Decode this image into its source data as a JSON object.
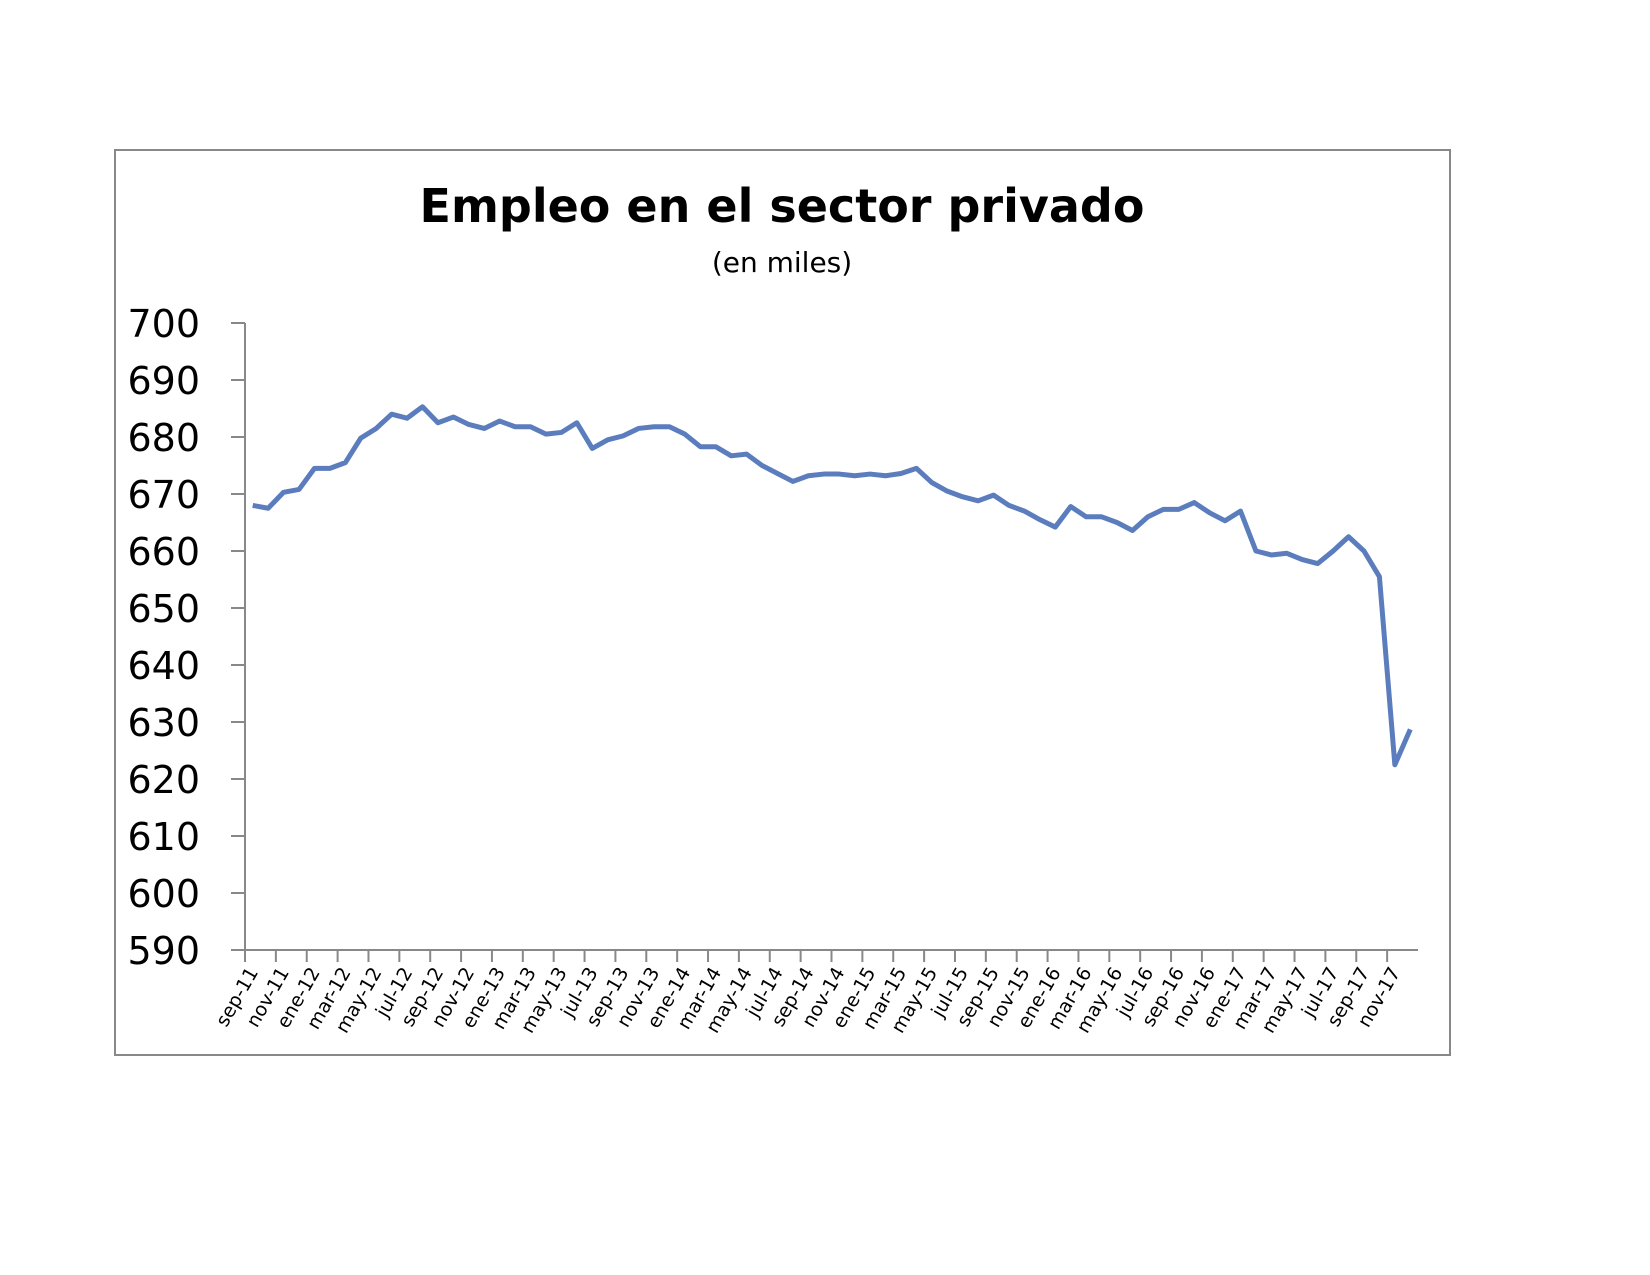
{
  "chart_data": {
    "type": "line",
    "title": "Empleo en el sector privado",
    "subtitle": "(en miles)",
    "categories": [
      "sep-11",
      null,
      "nov-11",
      null,
      "ene-12",
      null,
      "mar-12",
      null,
      "may-12",
      null,
      "jul-12",
      null,
      "sep-12",
      null,
      "nov-12",
      null,
      "ene-13",
      null,
      "mar-13",
      null,
      "may-13",
      null,
      "jul-13",
      null,
      "sep-13",
      null,
      "nov-13",
      null,
      "ene-14",
      null,
      "mar-14",
      null,
      "may-14",
      null,
      "jul-14",
      null,
      "sep-14",
      null,
      "nov-14",
      null,
      "ene-15",
      null,
      "mar-15",
      null,
      "may-15",
      null,
      "jul-15",
      null,
      "sep-15",
      null,
      "nov-15",
      null,
      "ene-16",
      null,
      "mar-16",
      null,
      "may-16",
      null,
      "jul-16",
      null,
      "sep-16",
      null,
      "nov-16",
      null,
      "ene-17",
      null,
      "mar-17",
      null,
      "may-17",
      null,
      "jul-17",
      null,
      "sep-17",
      null,
      "nov-17",
      null
    ],
    "series": [
      {
        "name": "Empleo",
        "color": "#5b7dbd",
        "values": [
          668,
          667.5,
          670.3,
          670.8,
          674.5,
          674.5,
          675.5,
          679.8,
          681.5,
          684,
          683.3,
          685.3,
          682.5,
          683.5,
          682.2,
          681.5,
          682.8,
          681.8,
          681.8,
          680.5,
          680.8,
          682.5,
          678,
          679.5,
          680.2,
          681.5,
          681.8,
          681.8,
          680.5,
          678.3,
          678.3,
          676.7,
          677,
          675,
          673.6,
          672.2,
          673.2,
          673.5,
          673.5,
          673.2,
          673.5,
          673.2,
          673.6,
          674.5,
          672,
          670.5,
          669.5,
          668.8,
          669.8,
          668,
          667,
          665.5,
          664.2,
          667.8,
          666,
          666,
          665,
          663.6,
          666,
          667.3,
          667.3,
          668.5,
          666.7,
          665.3,
          667,
          660,
          659.3,
          659.6,
          658.5,
          657.8,
          660,
          662.5,
          660,
          655.5,
          622.5,
          628.7
        ]
      }
    ],
    "ylim": [
      590,
      700
    ],
    "yticks": [
      590,
      600,
      610,
      620,
      630,
      640,
      650,
      660,
      670,
      680,
      690,
      700
    ]
  }
}
